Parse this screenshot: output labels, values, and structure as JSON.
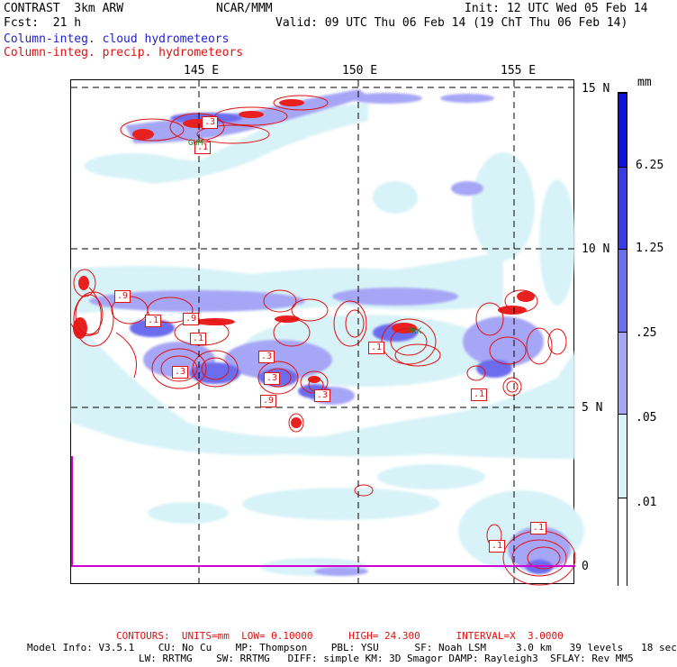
{
  "header": {
    "model": "CONTRAST  3km ARW",
    "org": "NCAR/MMM",
    "init": "Init: 12 UTC Wed 05 Feb 14",
    "fcst": "Fcst:  21 h",
    "valid": "Valid: 09 UTC Thu 06 Feb 14 (19 ChT Thu 06 Feb 14)",
    "field1": "Column-integ. cloud hydrometeors",
    "field2": "Column-integ. precip. hydrometeors"
  },
  "map": {
    "lon_labels": [
      "145 E",
      "150 E",
      "155 E"
    ],
    "lat_labels": [
      "15 N",
      "10 N",
      "5 N",
      "0"
    ],
    "box_labels": [
      ".3",
      ".1",
      ".9",
      ".1",
      ".9",
      ".1",
      ".3",
      ".3",
      ".3",
      ".9",
      ".3",
      ".1",
      ".1",
      ".1",
      ".1"
    ],
    "station_labels": [
      "GUM",
      "PKK"
    ]
  },
  "legend": {
    "units": "mm",
    "levels": [
      "6.25",
      "1.25",
      ".25",
      ".05",
      ".01"
    ],
    "colors": [
      "#1010d8",
      "#3a3ae6",
      "#6c6cef",
      "#a6a6f6",
      "#d8f3f8",
      "#ffffff"
    ]
  },
  "footer": {
    "contours": "CONTOURS:  UNITS=mm  LOW= 0.10000      HIGH= 24.300      INTERVAL=X  3.0000",
    "info1": "Model Info: V3.5.1    CU: No Cu    MP: Thompson    PBL: YSU      SF: Noah LSM     3.0 km   39 levels   18 sec",
    "info2": "LW: RRTMG    SW: RRTMG   DIFF: simple KM: 3D Smagor DAMP: Rayleigh3  SFLAY: Rev MM5"
  }
}
